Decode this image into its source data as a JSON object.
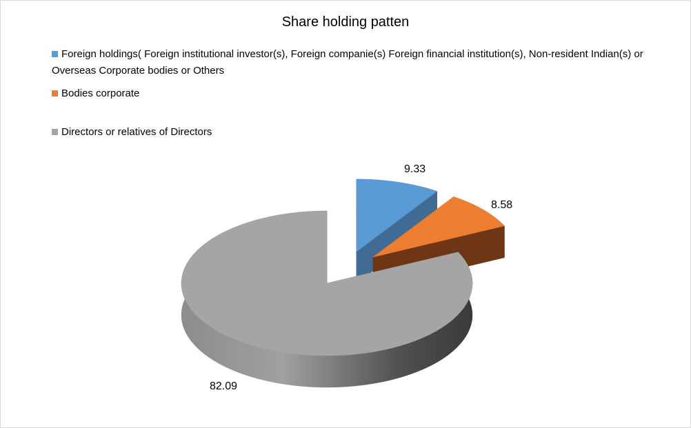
{
  "chart_data": {
    "type": "pie",
    "style": "3d-exploded",
    "title": "Share holding patten",
    "legend_position": "top-left",
    "categories": [
      "Foreign holdings( Foreign institutional investor(s), Foreign companie(s) Foreign financial institution(s), Non-resident Indian(s) or Overseas Corporate bodies or Others",
      "Bodies corporate",
      "Directors or relatives of Directors"
    ],
    "values": [
      9.33,
      8.58,
      82.09
    ],
    "data_labels": [
      "9.33",
      "8.58",
      "82.09"
    ],
    "colors": [
      "#5b9bd5",
      "#ed7d31",
      "#a5a5a5"
    ],
    "side_colors": [
      "#3f6b94",
      "#6e3614",
      "#595959"
    ],
    "exploded": [
      true,
      true,
      false
    ]
  }
}
